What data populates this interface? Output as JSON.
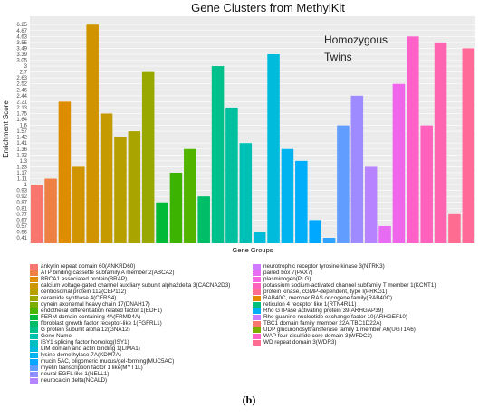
{
  "figure": {
    "title": "Gene Clusters from MethylKit",
    "caption": "(b)"
  },
  "chart_data": {
    "type": "bar",
    "title": "Gene Clusters from MethylKit",
    "xlabel": "Gene Groups",
    "ylabel": "Enrichment Score",
    "annotation": "Homozygous\nTwins",
    "grid": true,
    "legend_position": "bottom",
    "y_ticks": [
      "0.41",
      "0.56",
      "0.57",
      "0.67",
      "0.77",
      "0.81",
      "0.87",
      "0.92",
      "0.93",
      "1",
      "1.11",
      "1.17",
      "1.23",
      "1.3",
      "1.32",
      "1.36",
      "1.41",
      "1.42",
      "1.57",
      "1.6",
      "1.64",
      "1.75",
      "2.13",
      "2.21",
      "2.44",
      "2.46",
      "2.52",
      "2.63",
      "2.7",
      "3",
      "3.05",
      "3.39",
      "3.49",
      "3.55",
      "4.63",
      "4.67",
      "6.25"
    ],
    "categories": [
      "ankyrin repeat domain 60(ANKRD60)",
      "ATP binding cassette subfamily A member 2(ABCA2)",
      "BRCA1 associated protein(BRAP)",
      "calcium voltage-gated channel auxiliary subunit alpha2delta 3(CACNA2D3)",
      "centrosomal protein 112(CEP112)",
      "ceramide synthase 4(CERS4)",
      "dynein axonemal heavy chain 17(DNAH17)",
      "endothelial differentiation related factor 1(EDF1)",
      "FERM domain containing 4A(FRMD4A)",
      "fibroblast growth factor receptor-like 1(FGFRL1)",
      "G protein subunit alpha 12(GNA12)",
      "Gene Name",
      "ISY1 splicing factor homolog(ISY1)",
      "LIM domain and actin binding 1(LIMA1)",
      "lysine demethylase 7A(KDM7A)",
      "mucin 5AC, oligomeric mucus/gel-forming(MUC5AC)",
      "myelin transcription factor 1 like(MYT1L)",
      "neural EGFL like 1(NELL1)",
      "neurocalcin delta(NCALD)",
      "neurotrophic receptor tyrosine kinase 3(NTRK3)",
      "paired box 7(PAX7)",
      "plasminogen(PLG)",
      "potassium sodium-activated channel subfamily T member 1(KCNT1)",
      "protein kinase, cGMP-dependent, type I(PRKG1)",
      "RAB40C, member RAS oncogene family(RAB40C)",
      "reticulon 4 receptor like 1(RTN4RL1)",
      "Rho GTPase activating protein 39(ARHGAP39)",
      "Rho guanine nucleotide exchange factor 10(ARHGEF10)",
      "TBC1 domain family member 22A(TBC1D22A)",
      "UDP glucuronosyltransferase family 1 member A6(UGT1A6)",
      "WAP four-disulfide core domain 3(WFDC3)",
      "WD repeat domain 3(WDR3)"
    ],
    "values": [
      "1",
      "1.11",
      "2.21",
      "1.23",
      "6.25",
      "1.75",
      "1.42",
      "1.57",
      "2.7",
      "0.87",
      "1.17",
      "1.36",
      "0.92",
      "3",
      "2.13",
      "1.41",
      "0.56",
      "3.39",
      "1.36",
      "1.3",
      "0.67",
      "0.41",
      "1.6",
      "2.44",
      "1.23",
      "0.57",
      "2.52",
      "4.63",
      "1.6",
      "3.55",
      "0.77",
      "3.49"
    ],
    "colors": [
      "#F8766D",
      "#EE8044",
      "#DE8C00",
      "#CD9600",
      "#B79F00",
      "#9DA700",
      "#7CAE00",
      "#49B500",
      "#00BA38",
      "#00BE67",
      "#00C08B",
      "#00C1A9",
      "#00BFC4",
      "#00BBDC",
      "#00B4EF",
      "#00A9FF",
      "#619CFF",
      "#8F91FF",
      "#B385FF",
      "#D078FF",
      "#E76BF3",
      "#F763E0",
      "#FF62BC",
      "#FF6C91",
      "#E58700",
      "#00BF7D",
      "#00B0F6",
      "#C77CFF",
      "#F8766D",
      "#7CAE00",
      "#FF61CC",
      "#FF6C91"
    ],
    "bar_colors": [
      "#F8766D",
      "#EE8044",
      "#DE8C00",
      "#D09400",
      "#D09400",
      "#C49A00",
      "#B89F00",
      "#A9A400",
      "#99A800",
      "#00BA38",
      "#3BB300",
      "#53B400",
      "#00BE67",
      "#00C08B",
      "#00C0A0",
      "#00BFB4",
      "#00BCD8",
      "#00BBDC",
      "#00B4EF",
      "#00AEFA",
      "#00A9FF",
      "#2DA3FF",
      "#619CFF",
      "#9E8BFF",
      "#B883FF",
      "#E76BF3",
      "#F066EA",
      "#FF61C9",
      "#FF62BC",
      "#FF64B0",
      "#FF6C91",
      "#FF6A98"
    ]
  }
}
